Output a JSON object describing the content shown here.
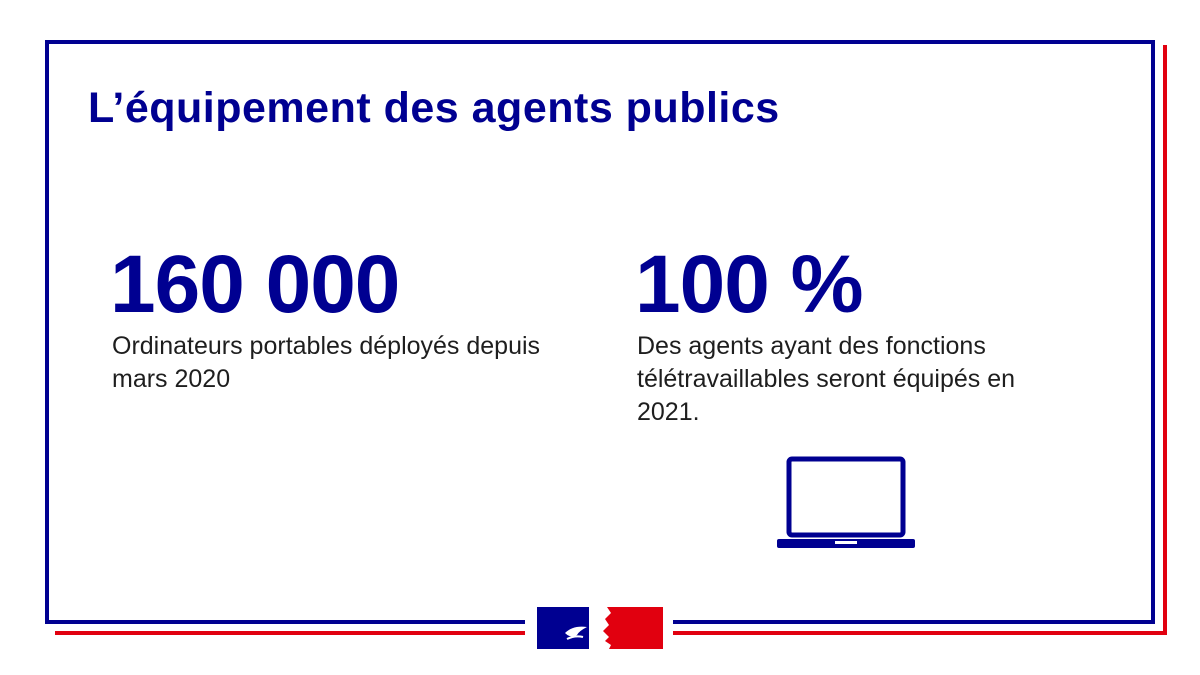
{
  "title": "L’équipement des agents publics",
  "stats": [
    {
      "value": "160 000",
      "description": "Ordinateurs portables déployés depuis mars 2020"
    },
    {
      "value": "100 %",
      "description": "Des agents ayant des fonctions télétravaillables seront équipés en 2021."
    }
  ],
  "icons": {
    "laptop": "laptop-icon",
    "logo": "marianne-logo"
  },
  "colors": {
    "primary": "#000091",
    "accent": "#e1000f",
    "text": "#1e1e1e",
    "background": "#ffffff"
  }
}
